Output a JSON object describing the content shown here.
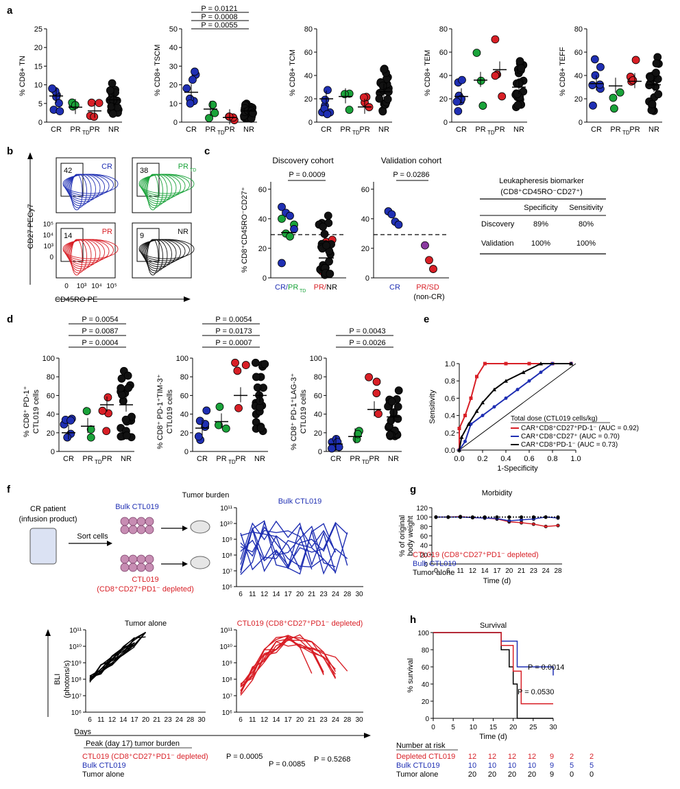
{
  "colors": {
    "CR": "#1f2fb3",
    "PRTD": "#1aa33a",
    "PR": "#d81f26",
    "NR": "#111111",
    "SD": "#8a3aa0",
    "grid": "#000000"
  },
  "panel_letters": [
    "a",
    "b",
    "c",
    "d",
    "e",
    "f",
    "g",
    "h"
  ],
  "panel_a": {
    "groups": [
      "CR",
      "PR",
      "PR",
      "NR"
    ],
    "group_subs": [
      "",
      "TD",
      "",
      ""
    ],
    "charts": [
      {
        "ylabel": "% CD8",
        "ylabel_sup": "+",
        "ylabel_sub": "T",
        "ylabel_subsub": "N",
        "ymax": 25,
        "ticks": [
          0,
          5,
          10,
          15,
          20,
          25
        ],
        "means": [
          7,
          4,
          3,
          6
        ],
        "pvals": []
      },
      {
        "ylabel": "% CD8",
        "ylabel_sup": "+",
        "ylabel_sub": "T",
        "ylabel_subsub": "SCM",
        "ymax": 50,
        "ticks": [
          0,
          10,
          20,
          30,
          40,
          50
        ],
        "means": [
          16,
          7,
          2.5,
          6
        ],
        "pvals": [
          "P = 0.0121",
          "P = 0.0008",
          "P = 0.0055"
        ]
      },
      {
        "ylabel": "% CD8",
        "ylabel_sup": "+",
        "ylabel_sub": "T",
        "ylabel_subsub": "CM",
        "ymax": 80,
        "ticks": [
          0,
          20,
          40,
          60,
          80
        ],
        "means": [
          20,
          22,
          13,
          26
        ],
        "pvals": []
      },
      {
        "ylabel": "% CD8",
        "ylabel_sup": "+",
        "ylabel_sub": "T",
        "ylabel_subsub": "EM",
        "ymax": 80,
        "ticks": [
          0,
          20,
          40,
          60,
          80
        ],
        "means": [
          22,
          36,
          45,
          30
        ],
        "pvals": []
      },
      {
        "ylabel": "% CD8",
        "ylabel_sup": "+",
        "ylabel_sub": "T",
        "ylabel_subsub": "EFF",
        "ymax": 80,
        "ticks": [
          0,
          20,
          40,
          60,
          80
        ],
        "means": [
          33,
          31,
          35,
          32
        ],
        "pvals": []
      }
    ]
  },
  "panel_b": {
    "labels": [
      "CR",
      "PR",
      "PR",
      "NR"
    ],
    "label_sub": [
      "",
      "TD",
      "",
      ""
    ],
    "gate_pct": [
      "42",
      "38",
      "14",
      "9"
    ],
    "ylabel": "CD27 PECy7",
    "xlabel": "CD45RO PE",
    "ticks": [
      "10⁵",
      "10⁴",
      "10³",
      "0"
    ],
    "xticks": [
      "0",
      "10³",
      "10⁴",
      "10⁵"
    ]
  },
  "panel_c": {
    "discovery_title": "Discovery cohort",
    "validation_title": "Validation cohort",
    "ylabel": "% CD8⁺CD45RO⁻CD27⁺",
    "ticks": [
      0,
      20,
      40,
      60
    ],
    "pval_disc": "P = 0.0009",
    "pval_val": "P = 0.0286",
    "x_disc": [
      "CR/PR",
      "TD",
      "PR/NR"
    ],
    "x_val": [
      "CR",
      "PR/SD",
      "(non-CR)"
    ],
    "table_title": "Leukapheresis biomarker",
    "table_sub": "(CD8⁺CD45RO⁻CD27⁺)",
    "table_cols": [
      "Specificity",
      "Sensitivity"
    ],
    "table_rows": [
      [
        "Discovery",
        "89%",
        "80%"
      ],
      [
        "Validation",
        "100%",
        "100%"
      ]
    ]
  },
  "panel_d": {
    "groups": [
      "CR",
      "PR",
      "PR",
      "NR"
    ],
    "charts": [
      {
        "ylabel1": "% CD8⁺ PD-1⁺",
        "ylabel2": "CTL019 cells",
        "pvals": [
          "P = 0.0054",
          "P = 0.0087",
          "P = 0.0004"
        ],
        "means": [
          20,
          27,
          50,
          50
        ]
      },
      {
        "ylabel1": "% CD8⁺ PD-1⁺TIM-3⁺",
        "ylabel2": "CTL019 cells",
        "pvals": [
          "P = 0.0054",
          "P = 0.0173",
          "P = 0.0007"
        ],
        "means": [
          25,
          32,
          60,
          60
        ]
      },
      {
        "ylabel1": "% CD8⁺ PD-1⁺LAG-3⁺",
        "ylabel2": "CTL019 cells",
        "pvals": [
          "P = 0.0043",
          "P = 0.0026"
        ],
        "means": [
          8,
          16,
          45,
          37
        ]
      }
    ],
    "ticks": [
      0,
      20,
      40,
      60,
      80,
      100
    ]
  },
  "panel_e": {
    "ylabel": "Sensitivity",
    "xlabel": "1-Specificity",
    "ticks": [
      "0.0",
      "0.2",
      "0.4",
      "0.6",
      "0.8",
      "1.0"
    ],
    "legend_title": "Total dose (CTL019 cells/kg)",
    "legend": [
      "CAR⁺CD8⁺CD27⁺PD-1⁻ (AUC = 0.92)",
      "CAR⁺CD8⁺CD27⁺ (AUC = 0.70)",
      "CAR⁺CD8⁺PD-1⁻ (AUC = 0.73)"
    ]
  },
  "panel_f": {
    "tumor_burden": "Tumor burden",
    "patient1": "CR patient",
    "patient2": "(infusion product)",
    "sort": "Sort cells",
    "bulk": "Bulk CTL019",
    "depleted1": "CTL019",
    "depleted2": "(CD8⁺CD27⁺PD1⁻ depleted)",
    "bulk_title": "Bulk CTL019",
    "tumor_alone_title": "Tumor alone",
    "depleted_title": "CTL019 (CD8⁺CD27⁺PD1⁻ depleted)",
    "yticks": [
      "10¹¹",
      "10¹⁰",
      "10⁹",
      "10⁸",
      "10⁷",
      "10⁶"
    ],
    "xticks": [
      "6",
      "11",
      "12",
      "14",
      "17",
      "20",
      "21",
      "23",
      "24",
      "28",
      "30"
    ],
    "ylabel1": "BLI",
    "ylabel2": "(photons/s)",
    "xlabel": "Days",
    "peak_title": "Peak (day 17) tumor burden",
    "peak_rows": [
      "CTL019 (CD8⁺CD27⁺PD1⁻ depleted)",
      "Bulk CTL019",
      "Tumor alone"
    ],
    "peak_p": [
      "P = 0.0005",
      "P = 0.0085",
      "P = 0.5268"
    ]
  },
  "panel_g": {
    "title": "Morbidity",
    "ylabel1": "% of original",
    "ylabel2": "body weight",
    "ticks": [
      "0",
      "20",
      "40",
      "60",
      "80",
      "100",
      "120"
    ],
    "xticks": [
      "0",
      "6",
      "11",
      "12",
      "14",
      "17",
      "20",
      "21",
      "23",
      "24",
      "28"
    ],
    "xlabel": "Time (d)",
    "legend": [
      "CTL019 (CD8⁺CD27⁺PD1⁻ depleted)",
      "Bulk CTL019",
      "Tumor alone"
    ]
  },
  "panel_h": {
    "title": "Survival",
    "ylabel": "% survival",
    "ticks": [
      "0",
      "20",
      "40",
      "60",
      "80",
      "100"
    ],
    "xticks": [
      "0",
      "5",
      "10",
      "15",
      "20",
      "25",
      "30"
    ],
    "xlabel": "Time (d)",
    "pvals": [
      "P = 0.0014",
      "P = 0.0530"
    ],
    "risk_title": "Number at risk",
    "risk_rows": [
      {
        "name": "Depleted CTL019",
        "values": [
          "12",
          "12",
          "12",
          "12",
          "9",
          "2",
          "2"
        ]
      },
      {
        "name": "Bulk CTL019",
        "values": [
          "10",
          "10",
          "10",
          "10",
          "9",
          "5",
          "5"
        ]
      },
      {
        "name": "Tumor alone",
        "values": [
          "20",
          "20",
          "20",
          "20",
          "9",
          "0",
          "0"
        ]
      }
    ]
  }
}
